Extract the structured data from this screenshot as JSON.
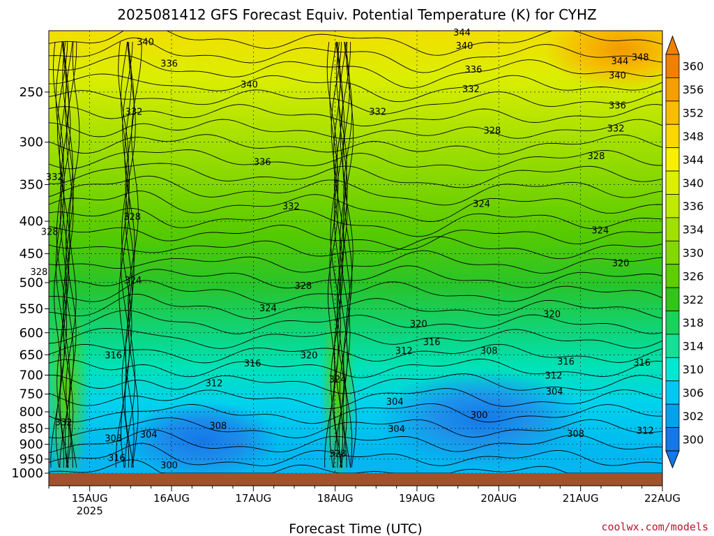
{
  "chart_data": {
    "type": "heatmap",
    "title": "2025081412 GFS Forecast Equiv. Potential Temperature (K) for CYHZ",
    "xlabel": "Forecast Time (UTC)",
    "ylabel": "",
    "x_ticks": [
      {
        "label": "15AUG",
        "sub": "2025",
        "day": 1
      },
      {
        "label": "16AUG",
        "sub": "",
        "day": 2
      },
      {
        "label": "17AUG",
        "sub": "",
        "day": 3
      },
      {
        "label": "18AUG",
        "sub": "",
        "day": 4
      },
      {
        "label": "19AUG",
        "sub": "",
        "day": 5
      },
      {
        "label": "20AUG",
        "sub": "",
        "day": 6
      },
      {
        "label": "21AUG",
        "sub": "",
        "day": 7
      },
      {
        "label": "22AUG",
        "sub": "",
        "day": 8
      }
    ],
    "x_range_days": [
      0.5,
      8.0
    ],
    "y_ticks_hpa": [
      250,
      300,
      350,
      400,
      450,
      500,
      550,
      600,
      650,
      700,
      750,
      800,
      850,
      900,
      950,
      1000
    ],
    "y_range_hpa": [
      200,
      1000
    ],
    "y_scale": "log",
    "colorbar": {
      "labels": [
        360,
        356,
        352,
        348,
        344,
        340,
        336,
        334,
        330,
        326,
        322,
        318,
        314,
        310,
        306,
        302,
        300
      ],
      "colors": [
        "#f08000",
        "#f5a000",
        "#f8bc00",
        "#fcd800",
        "#f8f000",
        "#dcf000",
        "#c0ea00",
        "#a2e000",
        "#82d800",
        "#5ece00",
        "#33c41a",
        "#19d25a",
        "#14e098",
        "#00e8d2",
        "#00c8f0",
        "#00a2ec",
        "#1478e8"
      ]
    },
    "contour_labels": [
      {
        "t": "340",
        "day": 1.68,
        "p": 208
      },
      {
        "t": "336",
        "day": 1.97,
        "p": 225
      },
      {
        "t": "340",
        "day": 2.95,
        "p": 243
      },
      {
        "t": "332",
        "day": 1.54,
        "p": 268
      },
      {
        "t": "336",
        "day": 3.11,
        "p": 322
      },
      {
        "t": "332",
        "day": 0.57,
        "p": 340
      },
      {
        "t": "328",
        "day": 1.52,
        "p": 393
      },
      {
        "t": "332",
        "day": 3.46,
        "p": 378
      },
      {
        "t": "328",
        "day": 0.51,
        "p": 415
      },
      {
        "t": "328",
        "day": 0.38,
        "p": 480
      },
      {
        "t": "324",
        "day": 1.53,
        "p": 495
      },
      {
        "t": "328",
        "day": 3.61,
        "p": 505
      },
      {
        "t": "324",
        "day": 3.18,
        "p": 548
      },
      {
        "t": "316",
        "day": 1.29,
        "p": 650
      },
      {
        "t": "316",
        "day": 2.99,
        "p": 670
      },
      {
        "t": "320",
        "day": 3.68,
        "p": 650
      },
      {
        "t": "312",
        "day": 2.52,
        "p": 720
      },
      {
        "t": "324",
        "day": 4.03,
        "p": 710
      },
      {
        "t": "332",
        "day": 0.68,
        "p": 830
      },
      {
        "t": "304",
        "day": 1.72,
        "p": 868
      },
      {
        "t": "308",
        "day": 2.57,
        "p": 840
      },
      {
        "t": "308",
        "day": 1.29,
        "p": 880
      },
      {
        "t": "316",
        "day": 1.33,
        "p": 945
      },
      {
        "t": "300",
        "day": 1.97,
        "p": 970
      },
      {
        "t": "328",
        "day": 4.03,
        "p": 930
      },
      {
        "t": "344",
        "day": 5.55,
        "p": 201
      },
      {
        "t": "340",
        "day": 5.58,
        "p": 211
      },
      {
        "t": "336",
        "day": 5.69,
        "p": 230
      },
      {
        "t": "332",
        "day": 5.66,
        "p": 247
      },
      {
        "t": "332",
        "day": 4.52,
        "p": 268
      },
      {
        "t": "328",
        "day": 5.92,
        "p": 287
      },
      {
        "t": "324",
        "day": 5.79,
        "p": 375
      },
      {
        "t": "320",
        "day": 5.02,
        "p": 580
      },
      {
        "t": "316",
        "day": 5.18,
        "p": 620
      },
      {
        "t": "312",
        "day": 4.84,
        "p": 640
      },
      {
        "t": "308",
        "day": 5.88,
        "p": 640
      },
      {
        "t": "304",
        "day": 4.73,
        "p": 770
      },
      {
        "t": "304",
        "day": 4.75,
        "p": 850
      },
      {
        "t": "300",
        "day": 5.76,
        "p": 808
      },
      {
        "t": "320",
        "day": 6.65,
        "p": 560
      },
      {
        "t": "316",
        "day": 6.82,
        "p": 665
      },
      {
        "t": "312",
        "day": 6.67,
        "p": 700
      },
      {
        "t": "304",
        "day": 6.68,
        "p": 742
      },
      {
        "t": "308",
        "day": 6.94,
        "p": 865
      },
      {
        "t": "348",
        "day": 7.73,
        "p": 220
      },
      {
        "t": "344",
        "day": 7.48,
        "p": 223
      },
      {
        "t": "340",
        "day": 7.45,
        "p": 235
      },
      {
        "t": "336",
        "day": 7.45,
        "p": 262
      },
      {
        "t": "332",
        "day": 7.43,
        "p": 285
      },
      {
        "t": "328",
        "day": 7.19,
        "p": 315
      },
      {
        "t": "324",
        "day": 7.24,
        "p": 413
      },
      {
        "t": "320",
        "day": 7.49,
        "p": 465
      },
      {
        "t": "316",
        "day": 7.75,
        "p": 668
      },
      {
        "t": "312",
        "day": 7.79,
        "p": 855
      }
    ],
    "credit": "coolwx.com/models"
  }
}
